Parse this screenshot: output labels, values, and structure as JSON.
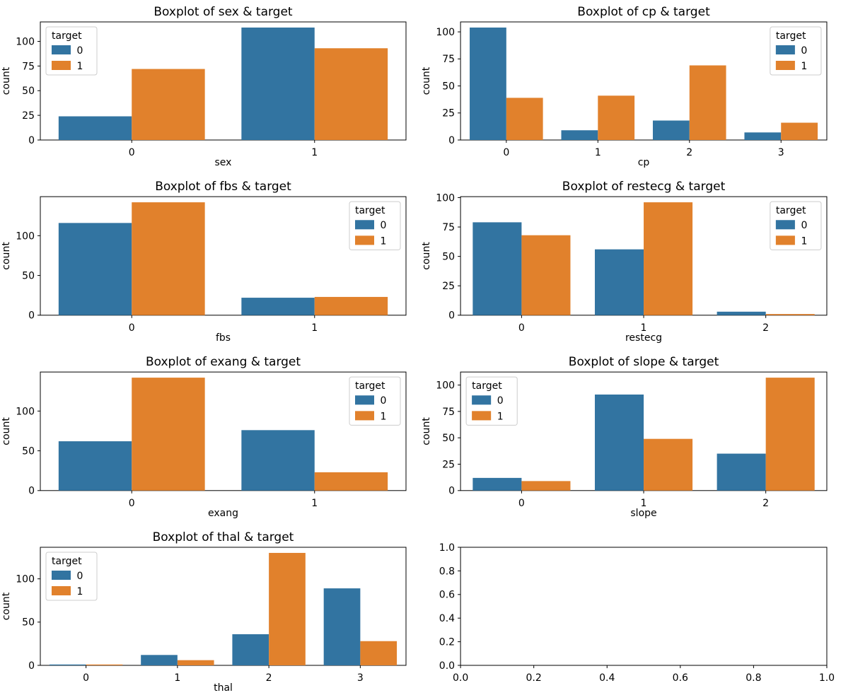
{
  "figure": {
    "background": "#ffffff",
    "grid": {
      "rows": 4,
      "cols": 2
    }
  },
  "style": {
    "series_colors": [
      "#3274a1",
      "#e1812c"
    ],
    "axes_edge_color": "#000000",
    "text_color": "#000000",
    "legend_border_color": "#cccccc",
    "legend_background": "#ffffff"
  },
  "legend": {
    "title": "target",
    "entries": [
      "0",
      "1"
    ]
  },
  "chart_data": [
    {
      "type": "bar",
      "title": "Boxplot of sex & target",
      "xlabel": "sex",
      "ylabel": "count",
      "categories": [
        "0",
        "1"
      ],
      "series": [
        {
          "name": "0",
          "values": [
            24,
            114
          ]
        },
        {
          "name": "1",
          "values": [
            72,
            93
          ]
        }
      ],
      "yticks": [
        0,
        25,
        50,
        75,
        100
      ],
      "ylim": [
        0,
        119.7
      ],
      "legend_loc": "upper-left",
      "grid_lines": false
    },
    {
      "type": "bar",
      "title": "Boxplot of cp & target",
      "xlabel": "cp",
      "ylabel": "count",
      "categories": [
        "0",
        "1",
        "2",
        "3"
      ],
      "series": [
        {
          "name": "0",
          "values": [
            104,
            9,
            18,
            7
          ]
        },
        {
          "name": "1",
          "values": [
            39,
            41,
            69,
            16
          ]
        }
      ],
      "yticks": [
        0,
        25,
        50,
        75,
        100
      ],
      "ylim": [
        0,
        109.2
      ],
      "legend_loc": "upper-right",
      "grid_lines": false
    },
    {
      "type": "bar",
      "title": "Boxplot of fbs & target",
      "xlabel": "fbs",
      "ylabel": "count",
      "categories": [
        "0",
        "1"
      ],
      "series": [
        {
          "name": "0",
          "values": [
            116,
            22
          ]
        },
        {
          "name": "1",
          "values": [
            142,
            23
          ]
        }
      ],
      "yticks": [
        0,
        50,
        100
      ],
      "ylim": [
        0,
        149.1
      ],
      "legend_loc": "upper-right",
      "grid_lines": false
    },
    {
      "type": "bar",
      "title": "Boxplot of restecg & target",
      "xlabel": "restecg",
      "ylabel": "count",
      "categories": [
        "0",
        "1",
        "2"
      ],
      "series": [
        {
          "name": "0",
          "values": [
            79,
            56,
            3
          ]
        },
        {
          "name": "1",
          "values": [
            68,
            96,
            1
          ]
        }
      ],
      "yticks": [
        0,
        25,
        50,
        75,
        100
      ],
      "ylim": [
        0,
        100.8
      ],
      "legend_loc": "upper-right",
      "grid_lines": false
    },
    {
      "type": "bar",
      "title": "Boxplot of exang & target",
      "xlabel": "exang",
      "ylabel": "count",
      "categories": [
        "0",
        "1"
      ],
      "series": [
        {
          "name": "0",
          "values": [
            62,
            76
          ]
        },
        {
          "name": "1",
          "values": [
            142,
            23
          ]
        }
      ],
      "yticks": [
        0,
        50,
        100
      ],
      "ylim": [
        0,
        149.1
      ],
      "legend_loc": "upper-right",
      "grid_lines": false
    },
    {
      "type": "bar",
      "title": "Boxplot of slope & target",
      "xlabel": "slope",
      "ylabel": "count",
      "categories": [
        "0",
        "1",
        "2"
      ],
      "series": [
        {
          "name": "0",
          "values": [
            12,
            91,
            35
          ]
        },
        {
          "name": "1",
          "values": [
            9,
            49,
            107
          ]
        }
      ],
      "yticks": [
        0,
        25,
        50,
        75,
        100
      ],
      "ylim": [
        0,
        112.35
      ],
      "legend_loc": "upper-left",
      "grid_lines": false
    },
    {
      "type": "bar",
      "title": "Boxplot of thal & target",
      "xlabel": "thal",
      "ylabel": "count",
      "categories": [
        "0",
        "1",
        "2",
        "3"
      ],
      "series": [
        {
          "name": "0",
          "values": [
            1,
            12,
            36,
            89
          ]
        },
        {
          "name": "1",
          "values": [
            1,
            6,
            130,
            28
          ]
        }
      ],
      "yticks": [
        0,
        50,
        100
      ],
      "ylim": [
        0,
        136.5
      ],
      "legend_loc": "upper-left",
      "grid_lines": false
    },
    {
      "type": "empty",
      "title": "",
      "xlabel": "",
      "ylabel": "",
      "xticks": [
        "0.0",
        "0.2",
        "0.4",
        "0.6",
        "0.8",
        "1.0"
      ],
      "yticks": [
        "0.0",
        "0.2",
        "0.4",
        "0.6",
        "0.8",
        "1.0"
      ],
      "xlim": [
        0,
        1
      ],
      "ylim": [
        0,
        1
      ],
      "grid_lines": false
    }
  ]
}
